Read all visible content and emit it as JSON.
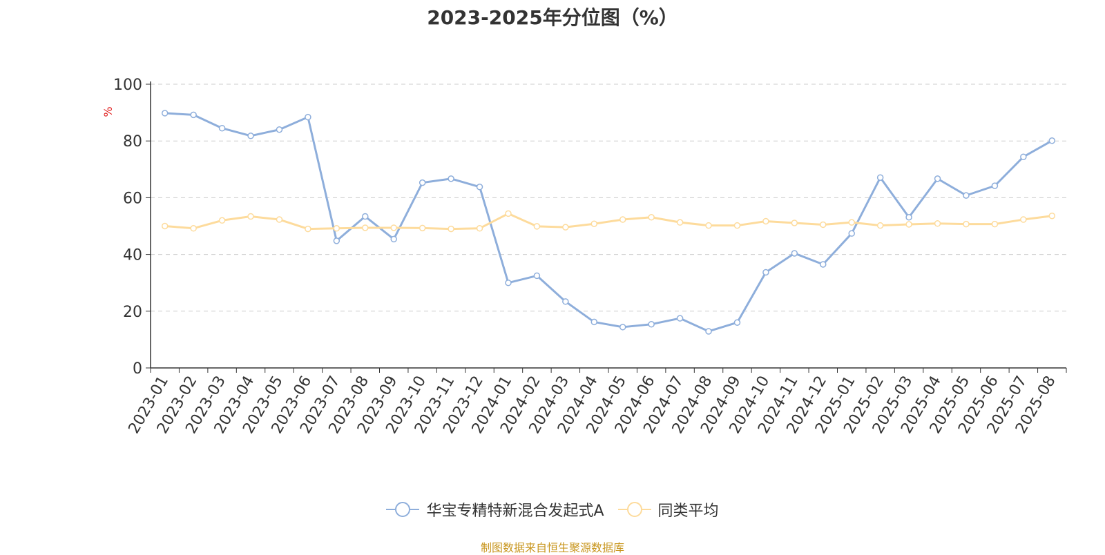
{
  "chart_data": {
    "type": "line",
    "title": "2023-2025年分位图（%）",
    "ylabel": "%",
    "xlabel": "",
    "ylim": [
      0,
      100
    ],
    "yticks": [
      0,
      20,
      40,
      60,
      80,
      100
    ],
    "grid": true,
    "legend_position": "bottom",
    "categories": [
      "2023-01",
      "2023-02",
      "2023-03",
      "2023-04",
      "2023-05",
      "2023-06",
      "2023-07",
      "2023-08",
      "2023-09",
      "2023-10",
      "2023-11",
      "2023-12",
      "2024-01",
      "2024-02",
      "2024-03",
      "2024-04",
      "2024-05",
      "2024-06",
      "2024-07",
      "2024-08",
      "2024-09",
      "2024-10",
      "2024-11",
      "2024-12",
      "2025-01",
      "2025-02",
      "2025-03",
      "2025-04",
      "2025-05",
      "2025-06",
      "2025-07",
      "2025-08"
    ],
    "series": [
      {
        "name": "华宝专精特新混合发起式A",
        "color": "#8eaedb",
        "values": [
          89.8,
          89.2,
          84.5,
          81.8,
          84.0,
          88.4,
          44.8,
          53.4,
          45.4,
          65.3,
          66.7,
          63.8,
          30.0,
          32.5,
          23.4,
          16.2,
          14.4,
          15.4,
          17.5,
          12.9,
          16.0,
          33.7,
          40.4,
          36.5,
          47.4,
          67.1,
          53.1,
          66.7,
          60.8,
          64.2,
          74.4,
          80.1
        ]
      },
      {
        "name": "同类平均",
        "color": "#fddb9c",
        "values": [
          50.0,
          49.2,
          52.0,
          53.4,
          52.3,
          49.0,
          49.2,
          49.4,
          49.4,
          49.3,
          49.0,
          49.2,
          54.4,
          49.9,
          49.6,
          50.8,
          52.3,
          53.1,
          51.3,
          50.2,
          50.2,
          51.7,
          51.1,
          50.5,
          51.3,
          50.2,
          50.6,
          50.9,
          50.7,
          50.7,
          52.3,
          53.6
        ]
      }
    ]
  },
  "footer": {
    "source": "制图数据来自恒生聚源数据库"
  }
}
